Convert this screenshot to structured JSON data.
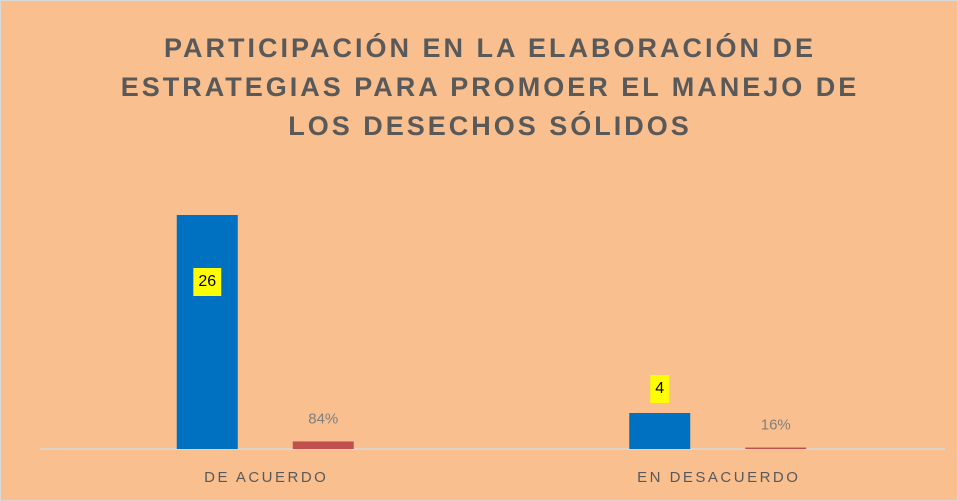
{
  "chart_data": {
    "type": "bar",
    "title": [
      "PARTICIPACIÓN EN LA ELABORACIÓN DE",
      "ESTRATEGIAS PARA PROMOER EL MANEJO DE",
      "LOS DESECHOS SÓLIDOS"
    ],
    "categories": [
      "DE ACUERDO",
      "EN DESACUERDO"
    ],
    "series": [
      {
        "color": "#0070c0",
        "values": [
          26,
          4
        ]
      },
      {
        "color": "#c0504d",
        "values": [
          0.84,
          0.16
        ],
        "value_labels": [
          "84%",
          "16%"
        ]
      }
    ],
    "ylim": [
      0,
      28
    ]
  }
}
